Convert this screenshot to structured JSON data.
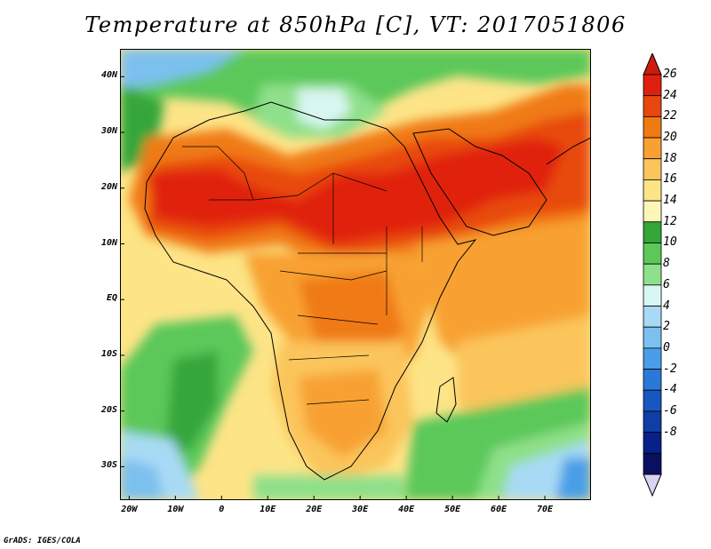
{
  "title": "Temperature at 850hPa [C], VT: 2017051806",
  "credit": "GrADS: IGES/COLA",
  "map": {
    "lon_range": [
      -22,
      80
    ],
    "lat_range": [
      -36,
      45
    ],
    "lat_ticks": [
      {
        "label": "40N",
        "lat": 40
      },
      {
        "label": "30N",
        "lat": 30
      },
      {
        "label": "20N",
        "lat": 20
      },
      {
        "label": "10N",
        "lat": 10
      },
      {
        "label": "EQ",
        "lat": 0
      },
      {
        "label": "10S",
        "lat": -10
      },
      {
        "label": "20S",
        "lat": -20
      },
      {
        "label": "30S",
        "lat": -30
      }
    ],
    "lon_ticks": [
      {
        "label": "20W",
        "lon": -20
      },
      {
        "label": "10W",
        "lon": -10
      },
      {
        "label": "0",
        "lon": 0
      },
      {
        "label": "10E",
        "lon": 10
      },
      {
        "label": "20E",
        "lon": 20
      },
      {
        "label": "30E",
        "lon": 30
      },
      {
        "label": "40E",
        "lon": 40
      },
      {
        "label": "50E",
        "lon": 50
      },
      {
        "label": "60E",
        "lon": 60
      },
      {
        "label": "70E",
        "lon": 70
      }
    ]
  },
  "colorbar": {
    "levels": [
      "26",
      "24",
      "22",
      "20",
      "18",
      "16",
      "14",
      "12",
      "10",
      "8",
      "6",
      "4",
      "2",
      "0",
      "-2",
      "-4",
      "-6",
      "-8"
    ],
    "colors": [
      "#e0200f",
      "#e8480f",
      "#f07a12",
      "#f8a132",
      "#fbc55c",
      "#fde487",
      "#fdf6b8",
      "#34a63a",
      "#5cc85a",
      "#8fe08a",
      "#d8f6f2",
      "#a8daf5",
      "#7cc0f0",
      "#4a9ee8",
      "#2a78d8",
      "#1857c2",
      "#0e3ea6",
      "#08208a",
      "#0a1060"
    ],
    "top_color": "#d01a0f",
    "bottom_color": "#d8d4f4"
  }
}
